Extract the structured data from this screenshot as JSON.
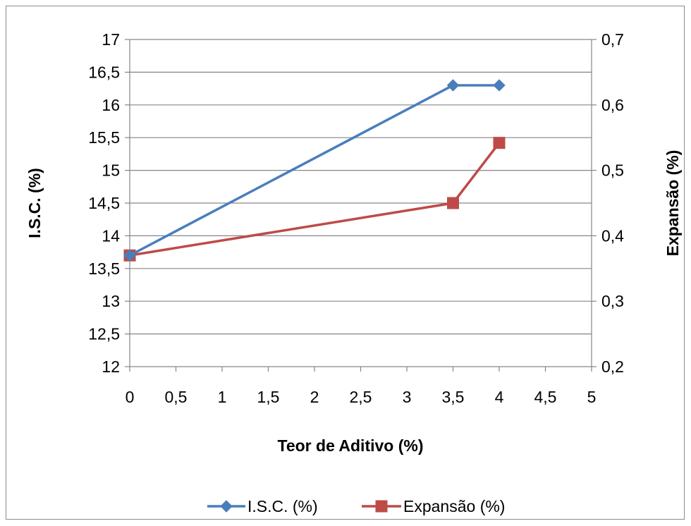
{
  "chart_data": {
    "type": "line",
    "title": "",
    "xlabel": "Teor de Aditivo (%)",
    "ylabel": "I.S.C. (%)",
    "y2label": "Expansão (%)",
    "xlim": [
      0,
      5
    ],
    "ylim": [
      12,
      17
    ],
    "y2lim": [
      0.2,
      0.7
    ],
    "x_ticks": [
      "0",
      "0,5",
      "1",
      "1,5",
      "2",
      "2,5",
      "3",
      "3,5",
      "4",
      "4,5",
      "5"
    ],
    "y_ticks": [
      "12",
      "12,5",
      "13",
      "13,5",
      "14",
      "14,5",
      "15",
      "15,5",
      "16",
      "16,5",
      "17"
    ],
    "y2_ticks": [
      "0,2",
      "0,3",
      "0,4",
      "0,5",
      "0,6",
      "0,7"
    ],
    "grid": "horizontal",
    "legend_position": "bottom",
    "series": [
      {
        "name": "I.S.C. (%)",
        "axis": "left",
        "color": "#4a7ebb",
        "marker": "diamond",
        "x": [
          0,
          3.5,
          4
        ],
        "values": [
          13.7,
          16.3,
          16.3
        ]
      },
      {
        "name": "Expansão (%)",
        "axis": "right",
        "color": "#be4b48",
        "marker": "square",
        "x": [
          0,
          3.5,
          4
        ],
        "values": [
          0.37,
          0.45,
          0.542
        ]
      }
    ]
  }
}
